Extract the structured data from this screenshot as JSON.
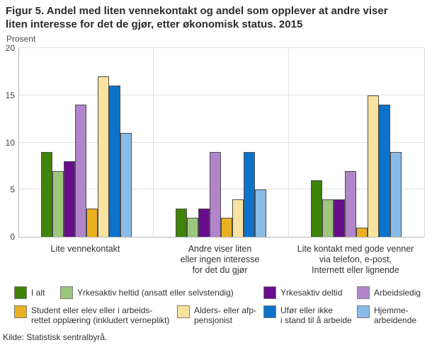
{
  "title": "Figur 5. Andel med liten vennekontakt og andel som opplever at andre viser\nliten interesse for det de gjør, etter økonomisk status. 2015",
  "y_axis": {
    "label": "Prosent",
    "ticks": [
      0,
      5,
      10,
      15,
      20
    ],
    "max": 20
  },
  "source": "Kilde: Statistisk sentralbyrå.",
  "x_axis_display_labels": [
    "Lite vennekontakt",
    "Andre viser liten\neller ingen interesse\nfor det du gjør",
    "Lite kontakt med gode venner\nvia telefon, e-post,\nInternett eller lignende"
  ],
  "chart_data": {
    "type": "bar",
    "title": "Figur 5. Andel med liten vennekontakt og andel som opplever at andre viser liten interesse for det de gjør, etter økonomisk status. 2015",
    "xlabel": "",
    "ylabel": "Prosent",
    "ylim": [
      0,
      20
    ],
    "grid": true,
    "legend_position": "bottom",
    "categories": [
      "Lite vennekontakt",
      "Andre viser liten eller ingen interesse for det du gjør",
      "Lite kontakt med gode venner via telefon, e-post, Internett eller lignende"
    ],
    "series": [
      {
        "name": "I alt",
        "legend_label": "I alt",
        "color": "#3e8408",
        "values": [
          9,
          3,
          6
        ]
      },
      {
        "name": "Yrkesaktiv heltid (ansatt eller selvstendig)",
        "legend_label": "Yrkesaktiv heltid (ansatt eller selvstendig)",
        "color": "#9bc67c",
        "values": [
          7,
          2,
          4
        ]
      },
      {
        "name": "Yrkesaktiv deltid",
        "legend_label": "Yrkesaktiv deltid",
        "color": "#680c8d",
        "values": [
          8,
          3,
          4
        ]
      },
      {
        "name": "Arbeidsledig",
        "legend_label": "Arbeidsledig",
        "color": "#b185c9",
        "values": [
          14,
          9,
          7
        ]
      },
      {
        "name": "Student eller elev eller i arbeidsrettet opplæring (inkludert verneplikt)",
        "legend_label": "Student eller elev eller i arbeids-\nrettet opplæring (inkludert verneplikt)",
        "color": "#e9b11f",
        "values": [
          3,
          2,
          1
        ]
      },
      {
        "name": "Alders- eller afp-pensjonist",
        "legend_label": "Alders- eller afp-\npensjonist",
        "color": "#f8e3a0",
        "values": [
          17,
          4,
          15
        ]
      },
      {
        "name": "Ufør eller ikke i stand til å arbeide",
        "legend_label": "Ufør eller ikke\ni stand til å arbeide",
        "color": "#0d72ca",
        "values": [
          16,
          9,
          14
        ]
      },
      {
        "name": "Hjemmearbeidende",
        "legend_label": "Hjemme-\narbeidende",
        "color": "#89bbe8",
        "values": [
          11,
          5,
          9
        ]
      }
    ]
  }
}
